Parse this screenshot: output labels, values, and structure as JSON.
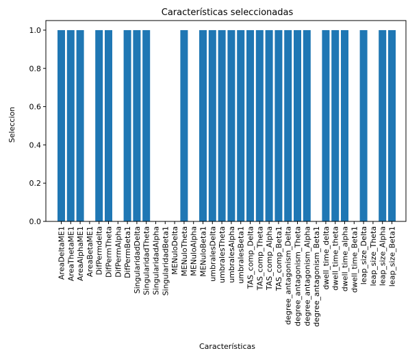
{
  "chart_data": {
    "type": "bar",
    "title": "Características seleccionadas",
    "xlabel": "Características",
    "ylabel": "Seleccion",
    "ylim": [
      0.0,
      1.05
    ],
    "yticks": [
      "0.0",
      "0.2",
      "0.4",
      "0.6",
      "0.8",
      "1.0"
    ],
    "grid": false,
    "bar_color": "#1f77b4",
    "categories": [
      "AreaDeltaME1",
      "AreaThetaME1",
      "AreaAlphaME1",
      "AreaBetaME1",
      "DifPermdelta",
      "DifPermTheta",
      "DifPermAlpha",
      "DifPermBeta1",
      "SingularidadDelta",
      "SingularidadTheta",
      "SingularidadAlpha",
      "SingularidadBeta1",
      "MENuloDelta",
      "MENuloTheta",
      "MENuloAlpha",
      "MENuloBeta1",
      "umbralesDelta",
      "umbralesTheta",
      "umbralesAlpha",
      "umbralesBeta1",
      "TAS_comp_Delta",
      "TAS_comp_Theta",
      "TAS_comp_Alpha",
      "TAS_comp_Beta1",
      "degree_antagonism_Delta",
      "degree_antagonism_Theta",
      "degree_antagonism_Alpha",
      "degree_antagonism_Beta1",
      "dwell_time_delta",
      "dwell_time_theta",
      "dwell_time_alpha",
      "dwell_time_Beta1",
      "leap_size_Delta",
      "leap_size_Theta",
      "leap_size_Alpha",
      "leap_size_Beta1"
    ],
    "values": [
      1,
      1,
      1,
      0,
      1,
      1,
      0,
      1,
      1,
      1,
      0,
      0,
      0,
      1,
      0,
      1,
      1,
      1,
      1,
      1,
      1,
      1,
      1,
      1,
      1,
      1,
      1,
      0,
      1,
      1,
      1,
      0,
      1,
      0,
      1,
      1
    ]
  }
}
